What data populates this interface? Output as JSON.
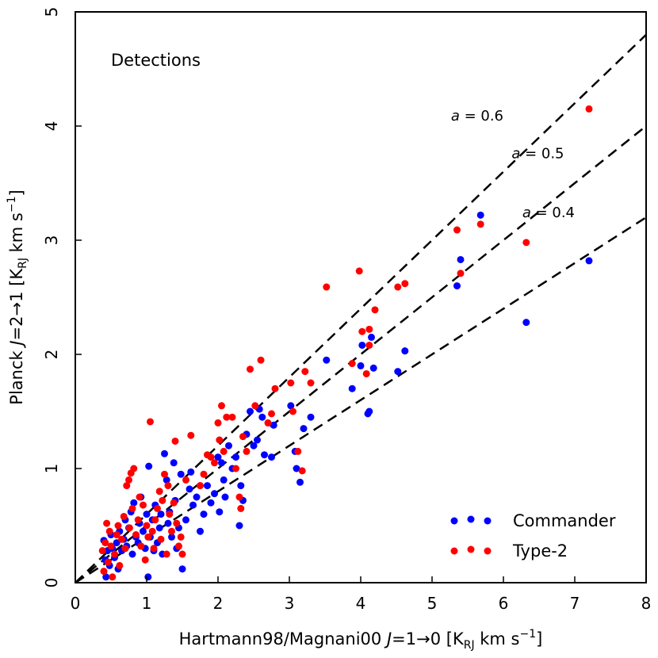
{
  "chart_data": {
    "type": "scatter",
    "panel_label": "Detections",
    "xlabel": "Hartmann98/Magnani00 J=1→0 [K_RJ km s⁻¹]",
    "ylabel": "Planck J=2→1 [K_RJ km s⁻¹]",
    "xlabel_parts": {
      "prefix": "Hartmann98/Magnani00 ",
      "J": "J",
      "transition": "=1→0 [K",
      "sub": "RJ",
      "units": " km s",
      "exp": "−1",
      "close": "]"
    },
    "ylabel_parts": {
      "prefix": "Planck ",
      "J": "J",
      "transition": "=2→1 [K",
      "sub": "RJ",
      "units": " km s",
      "exp": "−1",
      "close": "]"
    },
    "xlim": [
      0,
      8
    ],
    "ylim": [
      0,
      5
    ],
    "xticks": [
      "0",
      "1",
      "2",
      "3",
      "4",
      "5",
      "6",
      "7",
      "8"
    ],
    "yticks": [
      "0",
      "1",
      "2",
      "3",
      "4",
      "5"
    ],
    "reference_lines": [
      {
        "slope": 0.6,
        "label": "a = 0.6",
        "label_a": "a",
        "label_eq": " = 0.6",
        "label_at": [
          6.0,
          4.05
        ]
      },
      {
        "slope": 0.5,
        "label": "a = 0.5",
        "label_a": "a",
        "label_eq": " = 0.5",
        "label_at": [
          6.85,
          3.72
        ]
      },
      {
        "slope": 0.4,
        "label": "a = 0.4",
        "label_a": "a",
        "label_eq": " = 0.4",
        "label_at": [
          7.0,
          3.2
        ]
      }
    ],
    "legend_position": "bottom-right",
    "series": [
      {
        "name": "Commander",
        "color": "#0000ff",
        "points": [
          [
            0.4,
            0.37
          ],
          [
            0.42,
            0.2
          ],
          [
            0.43,
            0.05
          ],
          [
            0.45,
            0.28
          ],
          [
            0.48,
            0.15
          ],
          [
            0.5,
            0.42
          ],
          [
            0.52,
            0.3
          ],
          [
            0.55,
            0.22
          ],
          [
            0.58,
            0.35
          ],
          [
            0.6,
            0.12
          ],
          [
            0.62,
            0.45
          ],
          [
            0.65,
            0.28
          ],
          [
            0.68,
            0.38
          ],
          [
            0.7,
            0.55
          ],
          [
            0.72,
            0.32
          ],
          [
            0.75,
            0.48
          ],
          [
            0.78,
            0.62
          ],
          [
            0.8,
            0.25
          ],
          [
            0.82,
            0.7
          ],
          [
            0.85,
            0.4
          ],
          [
            0.88,
            0.35
          ],
          [
            0.9,
            0.52
          ],
          [
            0.92,
            0.75
          ],
          [
            0.95,
            0.45
          ],
          [
            0.98,
            0.3
          ],
          [
            1.0,
            0.6
          ],
          [
            1.02,
            0.05
          ],
          [
            1.03,
            1.02
          ],
          [
            1.05,
            0.4
          ],
          [
            1.08,
            0.55
          ],
          [
            1.1,
            0.28
          ],
          [
            1.12,
            0.68
          ],
          [
            1.15,
            0.35
          ],
          [
            1.18,
            0.48
          ],
          [
            1.2,
            0.6
          ],
          [
            1.22,
            0.25
          ],
          [
            1.25,
            1.13
          ],
          [
            1.28,
            0.9
          ],
          [
            1.3,
            0.52
          ],
          [
            1.32,
            0.62
          ],
          [
            1.35,
            0.4
          ],
          [
            1.38,
            1.05
          ],
          [
            1.4,
            0.72
          ],
          [
            1.42,
            0.3
          ],
          [
            1.45,
            0.48
          ],
          [
            1.48,
            0.95
          ],
          [
            1.5,
            0.12
          ],
          [
            1.55,
            0.55
          ],
          [
            1.6,
            0.82
          ],
          [
            1.62,
            0.97
          ],
          [
            1.65,
            0.68
          ],
          [
            1.7,
            0.75
          ],
          [
            1.75,
            0.45
          ],
          [
            1.8,
            0.6
          ],
          [
            1.85,
            0.85
          ],
          [
            1.9,
            0.7
          ],
          [
            1.95,
            0.78
          ],
          [
            2.0,
            1.1
          ],
          [
            2.02,
            0.62
          ],
          [
            2.05,
            1.05
          ],
          [
            2.08,
            0.9
          ],
          [
            2.1,
            0.75
          ],
          [
            2.15,
            1.2
          ],
          [
            2.2,
            1.0
          ],
          [
            2.25,
            1.1
          ],
          [
            2.3,
            0.5
          ],
          [
            2.32,
            0.85
          ],
          [
            2.35,
            0.72
          ],
          [
            2.4,
            1.3
          ],
          [
            2.45,
            1.5
          ],
          [
            2.5,
            1.2
          ],
          [
            2.55,
            1.25
          ],
          [
            2.58,
            1.52
          ],
          [
            2.62,
            1.45
          ],
          [
            2.65,
            1.12
          ],
          [
            2.75,
            1.1
          ],
          [
            2.78,
            1.38
          ],
          [
            3.02,
            1.55
          ],
          [
            3.08,
            1.15
          ],
          [
            3.1,
            1.0
          ],
          [
            3.15,
            0.88
          ],
          [
            3.2,
            1.35
          ],
          [
            3.3,
            1.45
          ],
          [
            3.52,
            1.95
          ],
          [
            3.88,
            1.7
          ],
          [
            4.0,
            1.9
          ],
          [
            4.02,
            2.08
          ],
          [
            4.1,
            1.48
          ],
          [
            4.12,
            1.5
          ],
          [
            4.15,
            2.15
          ],
          [
            4.18,
            1.88
          ],
          [
            4.52,
            1.85
          ],
          [
            4.62,
            2.03
          ],
          [
            5.35,
            2.6
          ],
          [
            5.4,
            2.83
          ],
          [
            5.68,
            3.22
          ],
          [
            6.32,
            2.28
          ],
          [
            7.2,
            2.82
          ]
        ]
      },
      {
        "name": "Type-2",
        "color": "#ff0000",
        "points": [
          [
            0.38,
            0.28
          ],
          [
            0.4,
            0.1
          ],
          [
            0.42,
            0.35
          ],
          [
            0.44,
            0.52
          ],
          [
            0.46,
            0.18
          ],
          [
            0.48,
            0.45
          ],
          [
            0.5,
            0.32
          ],
          [
            0.52,
            0.05
          ],
          [
            0.55,
            0.25
          ],
          [
            0.58,
            0.42
          ],
          [
            0.6,
            0.5
          ],
          [
            0.62,
            0.15
          ],
          [
            0.65,
            0.38
          ],
          [
            0.68,
            0.58
          ],
          [
            0.7,
            0.3
          ],
          [
            0.72,
            0.85
          ],
          [
            0.75,
            0.9
          ],
          [
            0.76,
            0.48
          ],
          [
            0.78,
            0.96
          ],
          [
            0.8,
            0.65
          ],
          [
            0.82,
            1.0
          ],
          [
            0.85,
            0.42
          ],
          [
            0.88,
            0.55
          ],
          [
            0.9,
            0.75
          ],
          [
            0.92,
            0.32
          ],
          [
            0.95,
            0.68
          ],
          [
            0.98,
            0.2
          ],
          [
            1.0,
            0.5
          ],
          [
            1.02,
            0.4
          ],
          [
            1.05,
            1.41
          ],
          [
            1.08,
            0.45
          ],
          [
            1.1,
            0.3
          ],
          [
            1.12,
            0.55
          ],
          [
            1.15,
            0.65
          ],
          [
            1.18,
            0.8
          ],
          [
            1.2,
            0.38
          ],
          [
            1.22,
            0.72
          ],
          [
            1.25,
            0.95
          ],
          [
            1.28,
            0.25
          ],
          [
            1.3,
            0.85
          ],
          [
            1.32,
            0.6
          ],
          [
            1.35,
            0.45
          ],
          [
            1.38,
            0.7
          ],
          [
            1.4,
            1.24
          ],
          [
            1.42,
            0.52
          ],
          [
            1.45,
            0.32
          ],
          [
            1.48,
            0.4
          ],
          [
            1.5,
            0.25
          ],
          [
            1.55,
            0.9
          ],
          [
            1.62,
            1.29
          ],
          [
            1.75,
            0.85
          ],
          [
            1.8,
            0.95
          ],
          [
            1.85,
            1.12
          ],
          [
            1.9,
            1.1
          ],
          [
            1.95,
            1.05
          ],
          [
            2.0,
            1.4
          ],
          [
            2.02,
            1.25
          ],
          [
            2.05,
            1.55
          ],
          [
            2.08,
            1.15
          ],
          [
            2.12,
            1.45
          ],
          [
            2.2,
            1.45
          ],
          [
            2.25,
            1.0
          ],
          [
            2.3,
            0.75
          ],
          [
            2.32,
            0.65
          ],
          [
            2.35,
            1.28
          ],
          [
            2.4,
            1.15
          ],
          [
            2.45,
            1.87
          ],
          [
            2.52,
            1.55
          ],
          [
            2.6,
            1.95
          ],
          [
            2.7,
            1.4
          ],
          [
            2.75,
            1.48
          ],
          [
            2.8,
            1.7
          ],
          [
            3.02,
            1.75
          ],
          [
            3.05,
            1.5
          ],
          [
            3.12,
            1.15
          ],
          [
            3.18,
            0.98
          ],
          [
            3.22,
            1.85
          ],
          [
            3.3,
            1.75
          ],
          [
            3.52,
            2.59
          ],
          [
            3.88,
            1.92
          ],
          [
            3.98,
            2.73
          ],
          [
            4.02,
            2.2
          ],
          [
            4.08,
            1.83
          ],
          [
            4.12,
            2.22
          ],
          [
            4.12,
            2.08
          ],
          [
            4.2,
            2.39
          ],
          [
            4.52,
            2.59
          ],
          [
            4.62,
            2.62
          ],
          [
            5.35,
            3.09
          ],
          [
            5.4,
            2.71
          ],
          [
            5.68,
            3.14
          ],
          [
            6.32,
            2.98
          ],
          [
            7.2,
            4.15
          ]
        ]
      }
    ]
  }
}
